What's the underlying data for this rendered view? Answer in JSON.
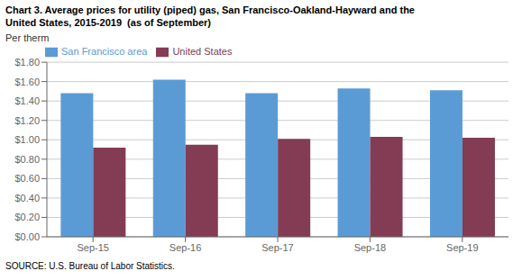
{
  "chart_data": {
    "type": "bar",
    "title": "Chart 3. Average prices for utility (piped) gas, San Francisco-Oakland-Hayward and the\nUnited States, 2015-2019  (as of September)",
    "y_label": "Per therm",
    "annotations": [
      "SOURCE: U.S. Bureau of Labor Statistics."
    ],
    "categories": [
      "Sep-15",
      "Sep-16",
      "Sep-17",
      "Sep-18",
      "Sep-19"
    ],
    "series": [
      {
        "name": "San Francisco area",
        "color": "#5B9BD5",
        "values": [
          1.48,
          1.62,
          1.48,
          1.53,
          1.51
        ]
      },
      {
        "name": "United States",
        "color": "#833C54",
        "values": [
          0.92,
          0.95,
          1.01,
          1.03,
          1.02
        ]
      }
    ],
    "ylim": [
      0.0,
      1.8
    ],
    "yticks": [
      {
        "value": 0.0,
        "label": "$0.00"
      },
      {
        "value": 0.2,
        "label": "$0.20"
      },
      {
        "value": 0.4,
        "label": "$0.40"
      },
      {
        "value": 0.6,
        "label": "$0.60"
      },
      {
        "value": 0.8,
        "label": "$0.80"
      },
      {
        "value": 1.0,
        "label": "$1.00"
      },
      {
        "value": 1.2,
        "label": "$1.20"
      },
      {
        "value": 1.4,
        "label": "$1.40"
      },
      {
        "value": 1.6,
        "label": "$1.60"
      },
      {
        "value": 1.8,
        "label": "$1.80"
      }
    ],
    "grid": true,
    "legend": "upper left"
  }
}
